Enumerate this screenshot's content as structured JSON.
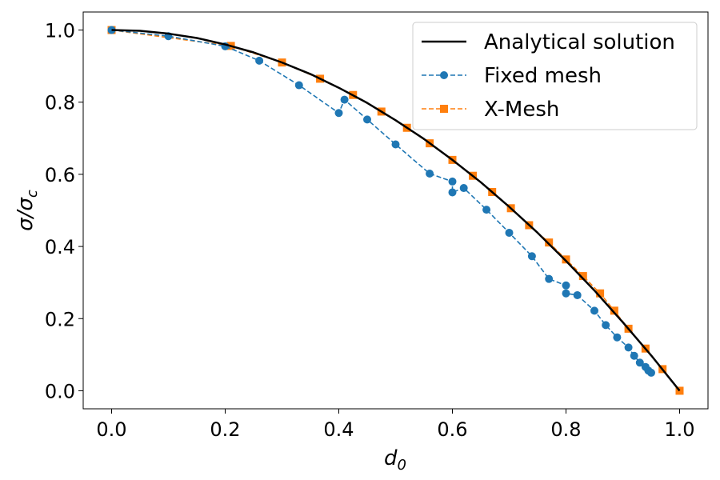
{
  "chart_data": {
    "type": "line",
    "title": "",
    "xlabel": "d",
    "xlabel_sub": "0",
    "ylabel": "σ/σ",
    "ylabel_sub": "c",
    "xlim": [
      -0.05,
      1.05
    ],
    "ylim": [
      -0.05,
      1.05
    ],
    "xticks": [
      "0.0",
      "0.2",
      "0.4",
      "0.6",
      "0.8",
      "1.0"
    ],
    "yticks": [
      "0.0",
      "0.2",
      "0.4",
      "0.6",
      "0.8",
      "1.0"
    ],
    "legend_position": "top-right",
    "series": [
      {
        "name": "Analytical solution",
        "color": "#000000",
        "style": "solid",
        "marker": "none",
        "x": [
          0.0,
          0.05,
          0.1,
          0.15,
          0.2,
          0.25,
          0.3,
          0.35,
          0.4,
          0.45,
          0.5,
          0.55,
          0.6,
          0.65,
          0.7,
          0.75,
          0.8,
          0.85,
          0.9,
          0.95,
          1.0
        ],
        "y": [
          1.0,
          0.998,
          0.99,
          0.978,
          0.96,
          0.938,
          0.91,
          0.878,
          0.84,
          0.798,
          0.75,
          0.698,
          0.64,
          0.578,
          0.51,
          0.438,
          0.36,
          0.278,
          0.19,
          0.098,
          0.0
        ]
      },
      {
        "name": "Fixed mesh",
        "color": "#1f77b4",
        "style": "dashed",
        "marker": "circle",
        "x": [
          0.0,
          0.1,
          0.2,
          0.26,
          0.33,
          0.4,
          0.41,
          0.45,
          0.5,
          0.56,
          0.6,
          0.6,
          0.62,
          0.66,
          0.7,
          0.74,
          0.77,
          0.8,
          0.8,
          0.82,
          0.85,
          0.87,
          0.89,
          0.91,
          0.92,
          0.93,
          0.94,
          0.945,
          0.95
        ],
        "y": [
          1.0,
          0.983,
          0.955,
          0.915,
          0.847,
          0.77,
          0.807,
          0.752,
          0.683,
          0.602,
          0.58,
          0.55,
          0.562,
          0.502,
          0.438,
          0.373,
          0.31,
          0.292,
          0.27,
          0.265,
          0.222,
          0.182,
          0.148,
          0.12,
          0.097,
          0.078,
          0.066,
          0.056,
          0.05
        ]
      },
      {
        "name": "X-Mesh",
        "color": "#ff7f0e",
        "style": "dashed",
        "marker": "square",
        "x": [
          0.0,
          0.21,
          0.3,
          0.367,
          0.425,
          0.475,
          0.52,
          0.56,
          0.6,
          0.636,
          0.67,
          0.703,
          0.735,
          0.77,
          0.8,
          0.83,
          0.86,
          0.885,
          0.91,
          0.94,
          0.97,
          1.0
        ],
        "y": [
          1.0,
          0.956,
          0.91,
          0.865,
          0.82,
          0.774,
          0.729,
          0.686,
          0.64,
          0.596,
          0.551,
          0.506,
          0.459,
          0.411,
          0.364,
          0.318,
          0.27,
          0.222,
          0.172,
          0.117,
          0.06,
          0.0
        ]
      }
    ]
  }
}
